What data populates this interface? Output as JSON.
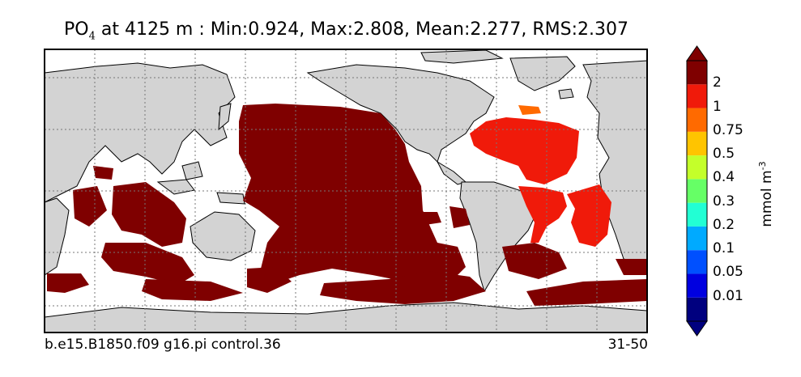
{
  "title": {
    "variable": "PO",
    "subscript": "4",
    "rest": " at 4125 m : Min:0.924, Max:2.808, Mean:2.277, RMS:2.307"
  },
  "colorbar": {
    "unit": "mmol m",
    "unit_exponent": "-3",
    "bands": [
      {
        "label": "",
        "color": "#00007f"
      },
      {
        "label": "0.01",
        "color": "#0000e0"
      },
      {
        "label": "0.05",
        "color": "#0050ff"
      },
      {
        "label": "0.1",
        "color": "#00aaff"
      },
      {
        "label": "0.2",
        "color": "#22ffd4"
      },
      {
        "label": "0.3",
        "color": "#66ff66"
      },
      {
        "label": "0.4",
        "color": "#c4ff2a"
      },
      {
        "label": "0.5",
        "color": "#ffc400"
      },
      {
        "label": "0.75",
        "color": "#ff6a00"
      },
      {
        "label": "1",
        "color": "#f01a0a"
      },
      {
        "label": "2",
        "color": "#7f0000"
      }
    ],
    "extend_low_color": "#00007f",
    "extend_high_color": "#7f0000"
  },
  "map": {
    "land_color": "#d3d3d3",
    "ocean_missing_color": "#ffffff",
    "dominant_color": "#7f0000",
    "atlantic_color": "#f01a0a"
  },
  "footer": {
    "left": "b.e15.B1850.f09 g16.pi control.36",
    "right": "31-50"
  }
}
